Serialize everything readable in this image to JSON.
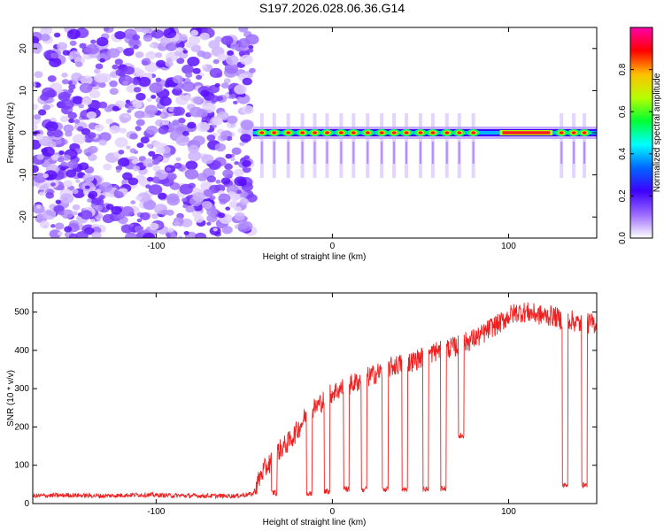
{
  "title": "S197.2026.028.06.36.G14",
  "chart_data": [
    {
      "type": "heatmap",
      "xlabel": "Height of straight line (km)",
      "ylabel": "Frequency (Hz)",
      "xlim": [
        -170,
        150
      ],
      "ylim": [
        -25,
        25
      ],
      "xticks": [
        -100,
        0,
        100
      ],
      "yticks": [
        -20,
        -10,
        0,
        10,
        20
      ],
      "noise_region_x": [
        -170,
        -45
      ],
      "signal_band_frequency_hz": 0,
      "bright_spots_x": [
        -40,
        -33,
        -25,
        -17,
        -10,
        -3,
        5,
        12,
        20,
        28,
        35,
        42,
        50,
        57,
        65,
        72,
        80,
        130,
        137,
        143
      ],
      "hot_segments_x": [
        [
          95,
          125
        ]
      ],
      "colorbar": {
        "label": "Normalized spectral amplitude",
        "range": [
          0.0,
          1.0
        ],
        "ticks": [
          "0.0",
          "0.2",
          "0.4",
          "0.6",
          "0.8"
        ],
        "colors": [
          "#ffffff",
          "#9b6bff",
          "#3e00ff",
          "#0066ff",
          "#00ffff",
          "#00ff33",
          "#b7ff00",
          "#ffbf00",
          "#ff0000",
          "#ff00aa"
        ]
      }
    },
    {
      "type": "line",
      "xlabel": "Height of straight line (km)",
      "ylabel": "SNR (10 * v/v)",
      "xlim": [
        -170,
        150
      ],
      "ylim": [
        0,
        550
      ],
      "xticks": [
        -100,
        0,
        100
      ],
      "yticks": [
        0,
        100,
        200,
        300,
        400,
        500
      ],
      "series": [
        {
          "name": "SNR",
          "color": "#ee2020",
          "x": [
            -170,
            -150,
            -130,
            -110,
            -90,
            -70,
            -55,
            -45,
            -40,
            -35,
            -30,
            -25,
            -20,
            -15,
            -10,
            -5,
            0,
            5,
            10,
            15,
            20,
            25,
            30,
            35,
            40,
            45,
            50,
            55,
            60,
            65,
            70,
            75,
            80,
            85,
            90,
            95,
            100,
            105,
            110,
            115,
            120,
            125,
            130,
            135,
            140,
            145,
            150
          ],
          "values": [
            20,
            22,
            20,
            23,
            21,
            20,
            20,
            25,
            80,
            110,
            140,
            160,
            190,
            230,
            250,
            270,
            290,
            300,
            310,
            320,
            330,
            340,
            350,
            360,
            365,
            370,
            380,
            390,
            400,
            405,
            410,
            420,
            430,
            440,
            460,
            470,
            490,
            500,
            500,
            495,
            490,
            490,
            480,
            480,
            470,
            470,
            470
          ]
        }
      ],
      "dips": [
        {
          "x": -33,
          "y": 20
        },
        {
          "x": -13,
          "y": 20
        },
        {
          "x": -3,
          "y": 25
        },
        {
          "x": 8,
          "y": 30
        },
        {
          "x": 18,
          "y": 30
        },
        {
          "x": 30,
          "y": 30
        },
        {
          "x": 41,
          "y": 30
        },
        {
          "x": 53,
          "y": 30
        },
        {
          "x": 63,
          "y": 30
        },
        {
          "x": 73,
          "y": 170
        },
        {
          "x": 132,
          "y": 40
        },
        {
          "x": 143,
          "y": 40
        }
      ]
    }
  ]
}
